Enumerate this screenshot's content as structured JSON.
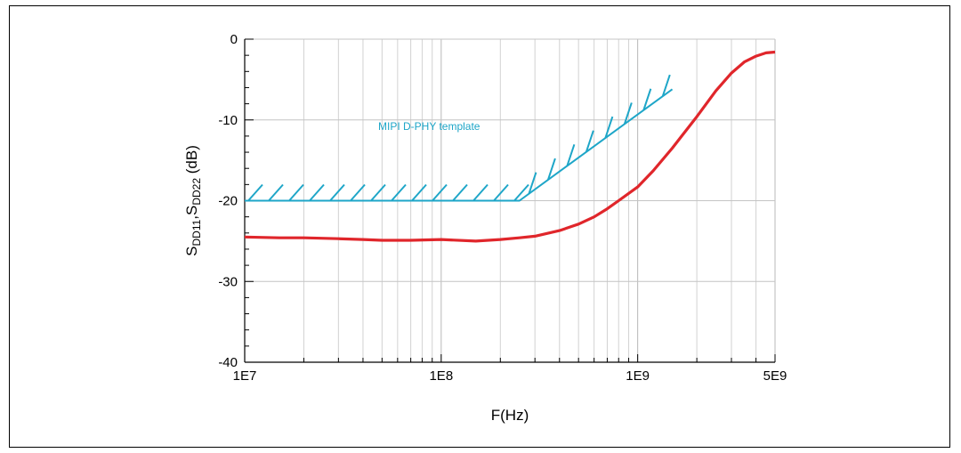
{
  "chart_data": {
    "type": "line",
    "xlabel": "F(Hz)",
    "ylabel": {
      "main": "S",
      "sub1": "DD11",
      "sep": ",S",
      "sub2": "DD22",
      "unit": " (dB)"
    },
    "x_scale": "log",
    "xlim": [
      10000000.0,
      5000000000.0
    ],
    "ylim": [
      -40,
      0
    ],
    "x_tick_labels": [
      {
        "value": 10000000.0,
        "label": "1E7"
      },
      {
        "value": 100000000.0,
        "label": "1E8"
      },
      {
        "value": 1000000000.0,
        "label": "1E9"
      },
      {
        "value": 5000000000.0,
        "label": "5E9"
      }
    ],
    "y_tick_labels": [
      {
        "value": 0,
        "label": "0"
      },
      {
        "value": -10,
        "label": "-10"
      },
      {
        "value": -20,
        "label": "-20"
      },
      {
        "value": -30,
        "label": "-30"
      },
      {
        "value": -40,
        "label": "-40"
      }
    ],
    "grid": true,
    "series": [
      {
        "color": "#e0262b",
        "x": [
          10000000.0,
          15000000.0,
          20000000.0,
          30000000.0,
          40000000.0,
          50000000.0,
          70000000.0,
          100000000.0,
          150000000.0,
          200000000.0,
          250000000.0,
          300000000.0,
          400000000.0,
          500000000.0,
          600000000.0,
          700000000.0,
          800000000.0,
          1000000000.0,
          1200000000.0,
          1500000000.0,
          2000000000.0,
          2500000000.0,
          3000000000.0,
          3500000000.0,
          4000000000.0,
          4500000000.0,
          5000000000.0
        ],
        "y": [
          -24.5,
          -24.6,
          -24.6,
          -24.7,
          -24.8,
          -24.9,
          -24.9,
          -24.8,
          -25.0,
          -24.8,
          -24.6,
          -24.4,
          -23.7,
          -22.9,
          -22.0,
          -21.0,
          -20.0,
          -18.3,
          -16.3,
          -13.5,
          -9.6,
          -6.4,
          -4.2,
          -2.8,
          -2.1,
          -1.7,
          -1.6
        ]
      }
    ],
    "template": {
      "label": "MIPI D-PHY template",
      "color": "#1ea6c8",
      "x": [
        10000000.0,
        250000000.0,
        1500000000.0
      ],
      "y": [
        -20,
        -20,
        -6.2
      ]
    }
  }
}
